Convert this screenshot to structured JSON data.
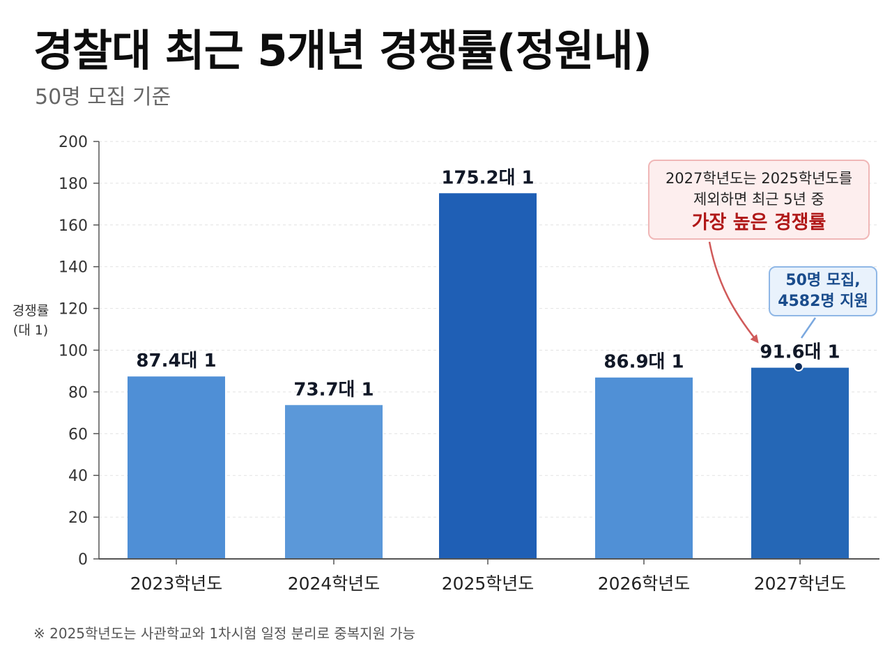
{
  "header": {
    "title": "경찰대 최근 5개년 경쟁률(정원내)",
    "subtitle": "50명 모집 기준"
  },
  "y_axis": {
    "label_line1": "경쟁률",
    "label_line2": "(대 1)"
  },
  "chart_data": {
    "type": "bar",
    "categories": [
      "2023학년도",
      "2024학년도",
      "2025학년도",
      "2026학년도",
      "2027학년도"
    ],
    "values": [
      87.4,
      73.7,
      175.2,
      86.9,
      91.6
    ],
    "data_labels": [
      "87.4대 1",
      "73.7대 1",
      "175.2대 1",
      "86.9대 1",
      "91.6대 1"
    ],
    "ylabel": "경쟁률 (대 1)",
    "ylim": [
      0,
      200
    ],
    "yticks": [
      0,
      20,
      40,
      60,
      80,
      100,
      120,
      140,
      160,
      180,
      200
    ],
    "grid": true,
    "bar_colors": [
      "#4f8fd6",
      "#5b98d9",
      "#1f5fb5",
      "#5090d6",
      "#2567b6"
    ],
    "annotations": [
      {
        "target": "2027학년도",
        "lines": [
          "2027학년도는 2025학년도를",
          "제외하면 최근 5년 중"
        ],
        "emphasis": "가장 높은 경쟁률",
        "style": "red-callout"
      },
      {
        "target": "2027학년도",
        "lines": [
          "50명 모집,",
          "4582명 지원"
        ],
        "style": "blue-callout"
      }
    ]
  },
  "footnote": "※  2025학년도는 사관학교와 1차시험 일정 분리로 중복지원 가능",
  "colors": {
    "annotation_red": "#b01818",
    "annotation_blue": "#1a4c8c",
    "arrow_red": "#d05a5a",
    "connector_blue": "#7aa8df",
    "axis": "#555555",
    "grid": "#e2e2e2"
  }
}
